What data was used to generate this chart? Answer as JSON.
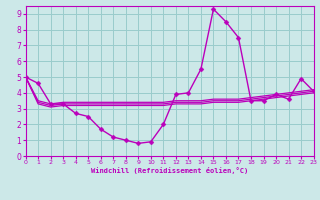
{
  "background_color": "#cce8e8",
  "line_color": "#bb00bb",
  "grid_color": "#99cccc",
  "xlabel": "Windchill (Refroidissement éolien,°C)",
  "xlim": [
    0,
    23
  ],
  "ylim": [
    0,
    9.5
  ],
  "xticks": [
    0,
    1,
    2,
    3,
    4,
    5,
    6,
    7,
    8,
    9,
    10,
    11,
    12,
    13,
    14,
    15,
    16,
    17,
    18,
    19,
    20,
    21,
    22,
    23
  ],
  "yticks": [
    0,
    1,
    2,
    3,
    4,
    5,
    6,
    7,
    8,
    9
  ],
  "main_x": [
    0,
    1,
    2,
    3,
    4,
    5,
    6,
    7,
    8,
    9,
    10,
    11,
    12,
    13,
    14,
    15,
    16,
    17,
    18,
    19,
    20,
    21,
    22,
    23
  ],
  "main_y": [
    5,
    4.6,
    3.3,
    3.3,
    2.7,
    2.5,
    1.7,
    1.2,
    1.0,
    0.8,
    0.9,
    2.0,
    3.9,
    4.0,
    5.5,
    9.3,
    8.5,
    7.5,
    3.5,
    3.5,
    3.9,
    3.6,
    4.9,
    4.1
  ],
  "flat_lines": [
    [
      5.0,
      3.3,
      3.1,
      3.2,
      3.2,
      3.2,
      3.2,
      3.2,
      3.2,
      3.2,
      3.2,
      3.2,
      3.3,
      3.3,
      3.3,
      3.4,
      3.4,
      3.4,
      3.5,
      3.6,
      3.7,
      3.8,
      3.9,
      4.0
    ],
    [
      5.0,
      3.4,
      3.2,
      3.3,
      3.3,
      3.3,
      3.3,
      3.3,
      3.3,
      3.3,
      3.3,
      3.3,
      3.4,
      3.4,
      3.4,
      3.5,
      3.5,
      3.5,
      3.6,
      3.7,
      3.8,
      3.9,
      4.0,
      4.1
    ],
    [
      5.0,
      3.5,
      3.3,
      3.4,
      3.4,
      3.4,
      3.4,
      3.4,
      3.4,
      3.4,
      3.4,
      3.4,
      3.5,
      3.5,
      3.5,
      3.6,
      3.6,
      3.6,
      3.7,
      3.8,
      3.9,
      4.0,
      4.1,
      4.2
    ]
  ],
  "marker": "D",
  "markersize": 2.5,
  "linewidth": 1.0,
  "flat_linewidth": 0.9
}
